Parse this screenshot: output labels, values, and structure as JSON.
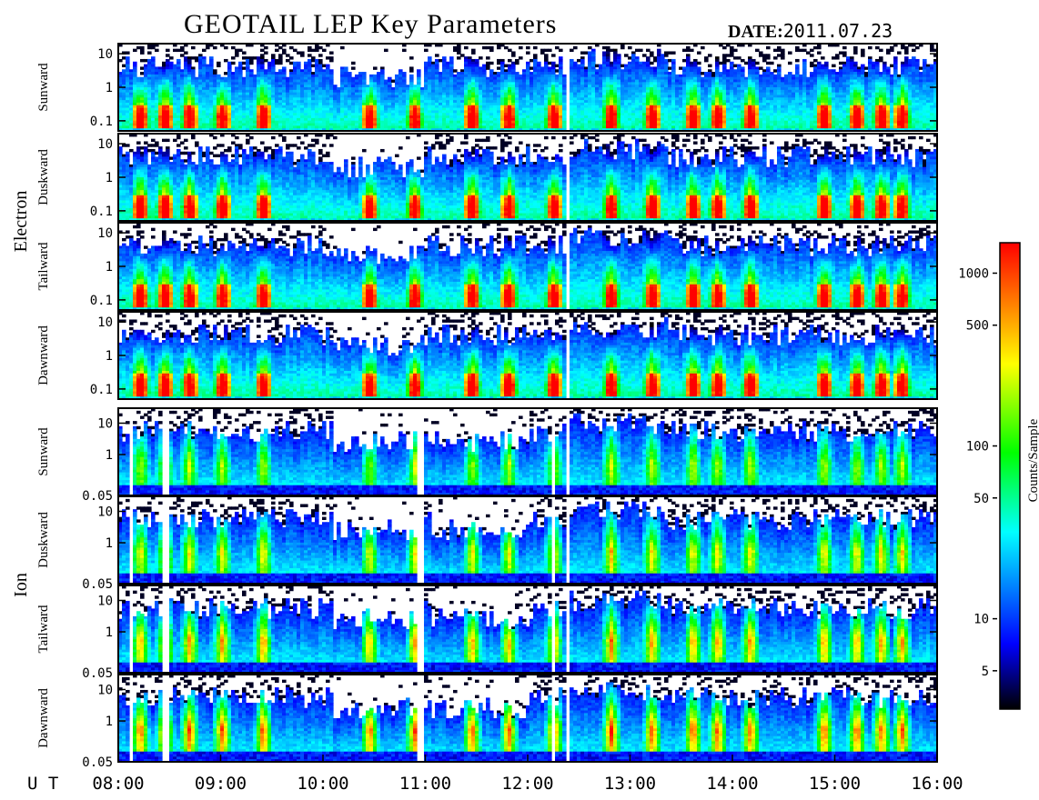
{
  "chart_data": {
    "type": "heatmap",
    "title": "GEOTAIL LEP Key Parameters",
    "date_label": "DATE:",
    "date_value": "2011.07.23",
    "x_axis_label": "U T",
    "x_range": [
      "08:00",
      "16:00"
    ],
    "x_ticks": [
      "08:00",
      "09:00",
      "10:00",
      "11:00",
      "12:00",
      "13:00",
      "14:00",
      "15:00",
      "16:00"
    ],
    "y_scale": "log",
    "colorbar": {
      "label": "Counts/Sample",
      "scale": "log",
      "range": [
        3,
        1500
      ],
      "ticks": [
        "5",
        "10",
        "50",
        "100",
        "500",
        "1000"
      ],
      "tick_values": [
        5,
        10,
        50,
        100,
        500,
        1000
      ],
      "colormap": [
        "#000000",
        "#0000ff",
        "#00ffff",
        "#00ff00",
        "#ffff00",
        "#ff7f00",
        "#ff0000"
      ]
    },
    "groups": [
      {
        "name": "Electron",
        "y_range": [
          0.05,
          20
        ],
        "y_ticks": [
          "0.1",
          "1",
          "10"
        ],
        "y_tick_values": [
          0.1,
          1,
          10
        ],
        "panels": [
          {
            "name": "Sunward"
          },
          {
            "name": "Duskward"
          },
          {
            "name": "Tailward"
          },
          {
            "name": "Dawnward"
          }
        ]
      },
      {
        "name": "Ion",
        "y_range": [
          0.05,
          30
        ],
        "y_ticks": [
          "0.05",
          "1",
          "10"
        ],
        "y_tick_values": [
          0.05,
          1,
          10
        ],
        "panels": [
          {
            "name": "Sunward"
          },
          {
            "name": "Duskward"
          },
          {
            "name": "Tailward"
          },
          {
            "name": "Dawnward"
          }
        ]
      }
    ]
  }
}
